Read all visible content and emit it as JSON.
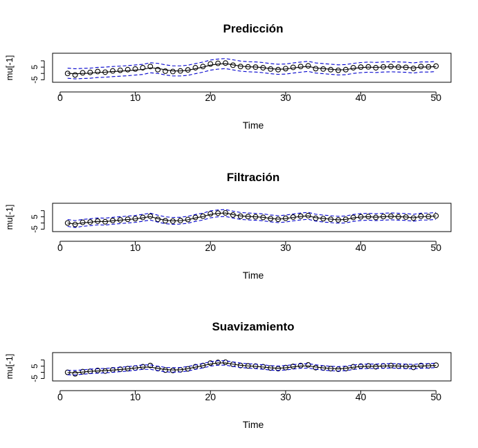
{
  "colors": {
    "line": "#000000",
    "band": "#0000cd",
    "axis": "#000000"
  },
  "chart_data": [
    {
      "type": "line",
      "title": "Predicción",
      "xlabel": "Time",
      "ylabel": "mu[-1]",
      "xticks": [
        10,
        20,
        30,
        40,
        50
      ],
      "yticks": [
        -5,
        5
      ],
      "xlim": [
        -1.0,
        52.0
      ],
      "ylim": [
        -7,
        16
      ],
      "x": [
        1,
        2,
        3,
        4,
        5,
        6,
        7,
        8,
        9,
        10,
        11,
        12,
        13,
        14,
        15,
        16,
        17,
        18,
        19,
        20,
        21,
        22,
        23,
        24,
        25,
        26,
        27,
        28,
        29,
        30,
        31,
        32,
        33,
        34,
        35,
        36,
        37,
        38,
        39,
        40,
        41,
        42,
        43,
        44,
        45,
        46,
        47,
        48,
        49,
        50
      ],
      "series": [
        {
          "name": "observed",
          "style": "points",
          "values": [
            0.0,
            -1.2,
            0.5,
            0.8,
            1.5,
            1.0,
            2.0,
            2.5,
            3.0,
            3.5,
            4.5,
            5.5,
            3.0,
            1.8,
            1.5,
            2.0,
            2.8,
            4.5,
            5.5,
            7.5,
            8.0,
            8.2,
            6.5,
            5.5,
            5.2,
            5.0,
            4.5,
            3.5,
            3.0,
            3.8,
            4.8,
            5.5,
            6.0,
            3.8,
            3.5,
            3.0,
            2.5,
            3.0,
            4.5,
            5.0,
            5.2,
            4.5,
            5.2,
            5.5,
            5.0,
            4.8,
            4.0,
            5.5,
            5.2,
            5.8
          ]
        },
        {
          "name": "predicted",
          "style": "line",
          "values": [
            0.2,
            -0.3,
            0.0,
            0.2,
            0.8,
            1.0,
            1.5,
            1.8,
            2.2,
            2.7,
            3.2,
            4.5,
            4.0,
            2.8,
            2.0,
            2.0,
            2.5,
            3.8,
            5.0,
            6.6,
            7.4,
            7.8,
            6.8,
            5.8,
            5.3,
            5.1,
            4.6,
            3.8,
            3.3,
            3.5,
            4.3,
            5.0,
            5.6,
            4.3,
            3.8,
            3.3,
            2.8,
            3.0,
            4.0,
            4.6,
            5.0,
            4.7,
            5.1,
            5.3,
            5.1,
            4.9,
            4.3,
            5.1,
            5.1,
            5.5
          ]
        },
        {
          "name": "upper",
          "style": "dashed",
          "values": [
            4.2,
            3.7,
            4.0,
            4.2,
            4.8,
            5.0,
            5.5,
            5.8,
            6.2,
            6.7,
            7.2,
            8.5,
            8.0,
            6.8,
            6.0,
            6.0,
            6.5,
            7.8,
            9.0,
            10.6,
            11.4,
            11.8,
            10.8,
            9.8,
            9.3,
            9.1,
            8.6,
            7.8,
            7.3,
            7.5,
            8.3,
            9.0,
            9.6,
            8.3,
            7.8,
            7.3,
            6.8,
            7.0,
            8.0,
            8.6,
            9.0,
            8.7,
            9.1,
            9.3,
            9.1,
            8.9,
            8.3,
            9.1,
            9.1,
            9.5
          ]
        },
        {
          "name": "lower",
          "style": "dashed",
          "values": [
            -3.8,
            -4.3,
            -4.0,
            -3.8,
            -3.2,
            -3.0,
            -2.5,
            -2.2,
            -1.8,
            -1.3,
            -0.8,
            0.5,
            0.0,
            -1.2,
            -2.0,
            -2.0,
            -1.5,
            -0.2,
            1.0,
            2.6,
            3.4,
            3.8,
            2.8,
            1.8,
            1.3,
            1.1,
            0.6,
            -0.2,
            -0.7,
            -0.5,
            0.3,
            1.0,
            1.6,
            0.3,
            -0.2,
            -0.7,
            -1.2,
            -1.0,
            0.0,
            0.6,
            1.0,
            0.7,
            1.1,
            1.3,
            1.1,
            0.9,
            0.3,
            1.1,
            1.1,
            1.5
          ]
        }
      ]
    },
    {
      "type": "line",
      "title": "Filtración",
      "xlabel": "Time",
      "ylabel": "mu[-1]",
      "xticks": [
        10,
        20,
        30,
        40,
        50
      ],
      "yticks": [
        -5,
        5
      ],
      "xlim": [
        -1.0,
        52.0
      ],
      "ylim": [
        -7,
        16
      ],
      "x": [
        1,
        2,
        3,
        4,
        5,
        6,
        7,
        8,
        9,
        10,
        11,
        12,
        13,
        14,
        15,
        16,
        17,
        18,
        19,
        20,
        21,
        22,
        23,
        24,
        25,
        26,
        27,
        28,
        29,
        30,
        31,
        32,
        33,
        34,
        35,
        36,
        37,
        38,
        39,
        40,
        41,
        42,
        43,
        44,
        45,
        46,
        47,
        48,
        49,
        50
      ],
      "series": [
        {
          "name": "observed",
          "style": "points",
          "values": [
            0.0,
            -1.2,
            0.5,
            0.8,
            1.5,
            1.0,
            2.0,
            2.5,
            3.0,
            3.5,
            4.5,
            5.5,
            3.0,
            1.8,
            1.5,
            2.0,
            2.8,
            4.5,
            5.5,
            7.5,
            8.0,
            8.2,
            6.5,
            5.5,
            5.2,
            5.0,
            4.5,
            3.5,
            3.0,
            3.8,
            4.8,
            5.5,
            6.0,
            3.8,
            3.5,
            3.0,
            2.5,
            3.0,
            4.5,
            5.0,
            5.2,
            4.5,
            5.2,
            5.5,
            5.0,
            4.8,
            4.0,
            5.5,
            5.2,
            5.8
          ]
        },
        {
          "name": "filtered",
          "style": "line",
          "values": [
            0.0,
            -0.9,
            0.1,
            0.6,
            1.3,
            1.1,
            1.8,
            2.3,
            2.8,
            3.3,
            4.2,
            5.2,
            3.5,
            2.2,
            1.7,
            1.9,
            2.6,
            4.1,
            5.2,
            7.0,
            7.8,
            8.1,
            6.8,
            5.7,
            5.3,
            5.0,
            4.6,
            3.7,
            3.1,
            3.6,
            4.5,
            5.3,
            5.8,
            4.3,
            3.6,
            3.1,
            2.6,
            2.9,
            4.1,
            4.8,
            5.1,
            4.7,
            5.1,
            5.4,
            5.1,
            4.9,
            4.2,
            5.2,
            5.2,
            5.7
          ]
        },
        {
          "name": "upper",
          "style": "dashed",
          "values": [
            2.8,
            1.9,
            2.9,
            3.4,
            4.1,
            3.9,
            4.6,
            5.1,
            5.6,
            6.1,
            7.0,
            8.0,
            6.3,
            5.0,
            4.5,
            4.7,
            5.4,
            6.9,
            8.0,
            9.8,
            10.6,
            10.9,
            9.6,
            8.5,
            8.1,
            7.8,
            7.4,
            6.5,
            5.9,
            6.4,
            7.3,
            8.1,
            8.6,
            7.1,
            6.4,
            5.9,
            5.4,
            5.7,
            6.9,
            7.6,
            7.9,
            7.5,
            7.9,
            8.2,
            7.9,
            7.7,
            7.0,
            8.0,
            8.0,
            8.5
          ]
        },
        {
          "name": "lower",
          "style": "dashed",
          "values": [
            -2.8,
            -3.7,
            -2.7,
            -2.2,
            -1.5,
            -1.7,
            -1.0,
            -0.5,
            0.0,
            0.5,
            1.4,
            2.4,
            0.7,
            -0.6,
            -1.1,
            -0.9,
            -0.2,
            1.3,
            2.4,
            4.2,
            5.0,
            5.3,
            4.0,
            2.9,
            2.5,
            2.2,
            1.8,
            0.9,
            0.3,
            0.8,
            1.7,
            2.5,
            3.0,
            1.5,
            0.8,
            0.3,
            -0.2,
            0.1,
            1.3,
            2.0,
            2.3,
            1.9,
            2.3,
            2.6,
            2.3,
            2.1,
            1.4,
            2.4,
            2.4,
            2.9
          ]
        }
      ]
    },
    {
      "type": "line",
      "title": "Suavizamiento",
      "xlabel": "Time",
      "ylabel": "mu[-1]",
      "xticks": [
        10,
        20,
        30,
        40,
        50
      ],
      "yticks": [
        -5,
        5
      ],
      "xlim": [
        -1.0,
        52.0
      ],
      "ylim": [
        -7,
        16
      ],
      "x": [
        1,
        2,
        3,
        4,
        5,
        6,
        7,
        8,
        9,
        10,
        11,
        12,
        13,
        14,
        15,
        16,
        17,
        18,
        19,
        20,
        21,
        22,
        23,
        24,
        25,
        26,
        27,
        28,
        29,
        30,
        31,
        32,
        33,
        34,
        35,
        36,
        37,
        38,
        39,
        40,
        41,
        42,
        43,
        44,
        45,
        46,
        47,
        48,
        49,
        50
      ],
      "series": [
        {
          "name": "observed",
          "style": "points",
          "values": [
            0.0,
            -1.2,
            0.5,
            0.8,
            1.5,
            1.0,
            2.0,
            2.5,
            3.0,
            3.5,
            4.5,
            5.5,
            3.0,
            1.8,
            1.5,
            2.0,
            2.8,
            4.5,
            5.5,
            7.5,
            8.0,
            8.2,
            6.5,
            5.5,
            5.2,
            5.0,
            4.5,
            3.5,
            3.0,
            3.8,
            4.8,
            5.5,
            6.0,
            3.8,
            3.5,
            3.0,
            2.5,
            3.0,
            4.5,
            5.0,
            5.2,
            4.5,
            5.2,
            5.5,
            5.0,
            4.8,
            4.0,
            5.5,
            5.2,
            5.8
          ]
        },
        {
          "name": "smoothed",
          "style": "line",
          "values": [
            -0.2,
            -0.3,
            0.2,
            0.8,
            1.1,
            1.4,
            1.8,
            2.3,
            2.8,
            3.5,
            4.2,
            4.2,
            3.2,
            2.2,
            1.9,
            2.1,
            2.9,
            4.2,
            5.4,
            6.8,
            7.6,
            7.6,
            6.6,
            5.7,
            5.2,
            4.8,
            4.3,
            3.6,
            3.3,
            3.7,
            4.4,
            5.1,
            5.2,
            4.3,
            3.6,
            3.1,
            2.8,
            3.2,
            4.1,
            4.7,
            4.9,
            4.9,
            5.1,
            5.3,
            5.1,
            4.8,
            4.6,
            5.1,
            5.3,
            5.6
          ]
        },
        {
          "name": "upper",
          "style": "dashed",
          "values": [
            1.6,
            1.5,
            2.0,
            2.6,
            2.9,
            3.2,
            3.6,
            4.1,
            4.6,
            5.3,
            6.0,
            6.0,
            5.0,
            4.0,
            3.7,
            3.9,
            4.7,
            6.0,
            7.2,
            8.6,
            9.4,
            9.4,
            8.4,
            7.5,
            7.0,
            6.6,
            6.1,
            5.4,
            5.1,
            5.5,
            6.2,
            6.9,
            7.0,
            6.1,
            5.4,
            4.9,
            4.6,
            5.0,
            5.9,
            6.5,
            6.7,
            6.7,
            6.9,
            7.1,
            6.9,
            6.6,
            6.4,
            6.9,
            7.1,
            7.4
          ]
        },
        {
          "name": "lower",
          "style": "dashed",
          "values": [
            -2.0,
            -2.1,
            -1.6,
            -1.0,
            -0.7,
            -0.4,
            0.0,
            0.5,
            1.0,
            1.7,
            2.4,
            2.4,
            1.4,
            0.4,
            0.1,
            0.3,
            1.1,
            2.4,
            3.6,
            5.0,
            5.8,
            5.8,
            4.8,
            3.9,
            3.4,
            3.0,
            2.5,
            1.8,
            1.5,
            1.9,
            2.6,
            3.3,
            3.4,
            2.5,
            1.8,
            1.3,
            1.0,
            1.4,
            2.3,
            2.9,
            3.1,
            3.1,
            3.3,
            3.5,
            3.3,
            3.0,
            2.8,
            3.3,
            3.5,
            3.8
          ]
        }
      ]
    }
  ]
}
